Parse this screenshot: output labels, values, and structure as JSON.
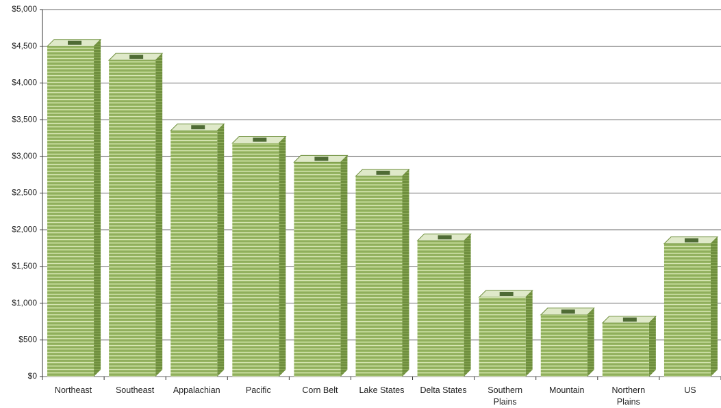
{
  "chart_data": {
    "type": "bar",
    "categories": [
      "Northeast",
      "Southeast",
      "Appalachian",
      "Pacific",
      "Corn Belt",
      "Lake States",
      "Delta States",
      "Southern Plains",
      "Mountain",
      "Northern Plains",
      "US"
    ],
    "values": [
      4500,
      4310,
      3350,
      3180,
      2920,
      2730,
      1850,
      1080,
      840,
      730,
      1810
    ],
    "color": "#8cab5a",
    "ylim": [
      0,
      5000
    ],
    "yticks": [
      {
        "value": 0,
        "label": "$0"
      },
      {
        "value": 500,
        "label": "$500"
      },
      {
        "value": 1000,
        "label": "$1,000"
      },
      {
        "value": 1500,
        "label": "$1,500"
      },
      {
        "value": 2000,
        "label": "$2,000"
      },
      {
        "value": 2500,
        "label": "$2,500"
      },
      {
        "value": 3000,
        "label": "$3,000"
      },
      {
        "value": 3500,
        "label": "$3,500"
      },
      {
        "value": 4000,
        "label": "$4,000"
      },
      {
        "value": 4500,
        "label": "$4,500"
      },
      {
        "value": 5000,
        "label": "$5,000"
      }
    ],
    "grid": true
  }
}
